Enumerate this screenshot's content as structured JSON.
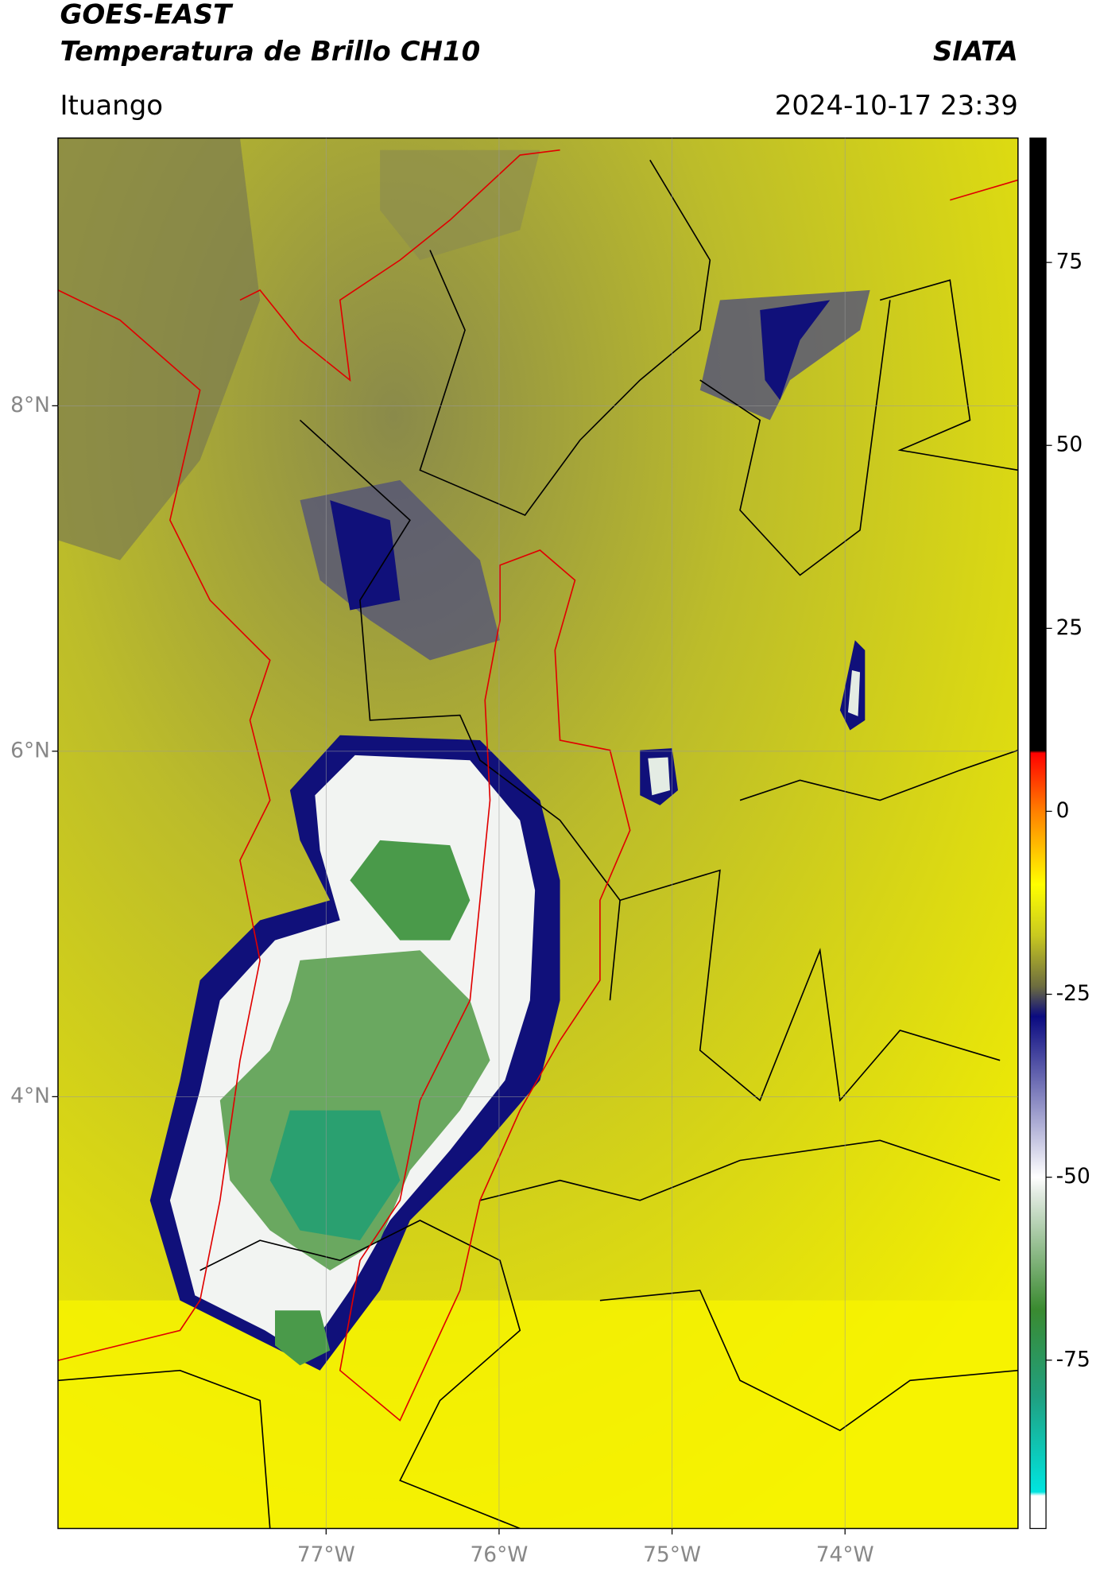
{
  "header": {
    "title": "GOES-EAST",
    "subtitle": "Temperatura de Brillo CH10",
    "source": "SIATA",
    "location": "Ituango",
    "datetime": "2024-10-17 23:39"
  },
  "map": {
    "xlim": [
      -78.55,
      -73.0
    ],
    "ylim": [
      1.5,
      9.55
    ],
    "xticks": [
      {
        "value": -77,
        "label": "77°W"
      },
      {
        "value": -76,
        "label": "76°W"
      },
      {
        "value": -75,
        "label": "75°W"
      },
      {
        "value": -74,
        "label": "74°W"
      }
    ],
    "yticks": [
      {
        "value": 4,
        "label": "4°N"
      },
      {
        "value": 6,
        "label": "6°N"
      },
      {
        "value": 8,
        "label": "8°N"
      }
    ],
    "grid": true
  },
  "colorbar": {
    "lim": [
      -98,
      92
    ],
    "ticks": [
      -75,
      -50,
      -25,
      0,
      25,
      50,
      75
    ],
    "stops": [
      {
        "value": -98,
        "color": "#ffffff"
      },
      {
        "value": -93.5,
        "color": "#ffffff"
      },
      {
        "value": -93,
        "color": "#00e5e0"
      },
      {
        "value": -80,
        "color": "#20a080"
      },
      {
        "value": -68,
        "color": "#3a8a30"
      },
      {
        "value": -52,
        "color": "#e4ece4"
      },
      {
        "value": -50,
        "color": "#ffffff"
      },
      {
        "value": -28,
        "color": "#0a0a80"
      },
      {
        "value": -24,
        "color": "#6b6b40"
      },
      {
        "value": -17,
        "color": "#c8c820"
      },
      {
        "value": -10,
        "color": "#ffff00"
      },
      {
        "value": 0,
        "color": "#ff8000"
      },
      {
        "value": 8,
        "color": "#ff0000"
      },
      {
        "value": 8.3,
        "color": "#000000"
      },
      {
        "value": 92,
        "color": "#000000"
      }
    ]
  }
}
